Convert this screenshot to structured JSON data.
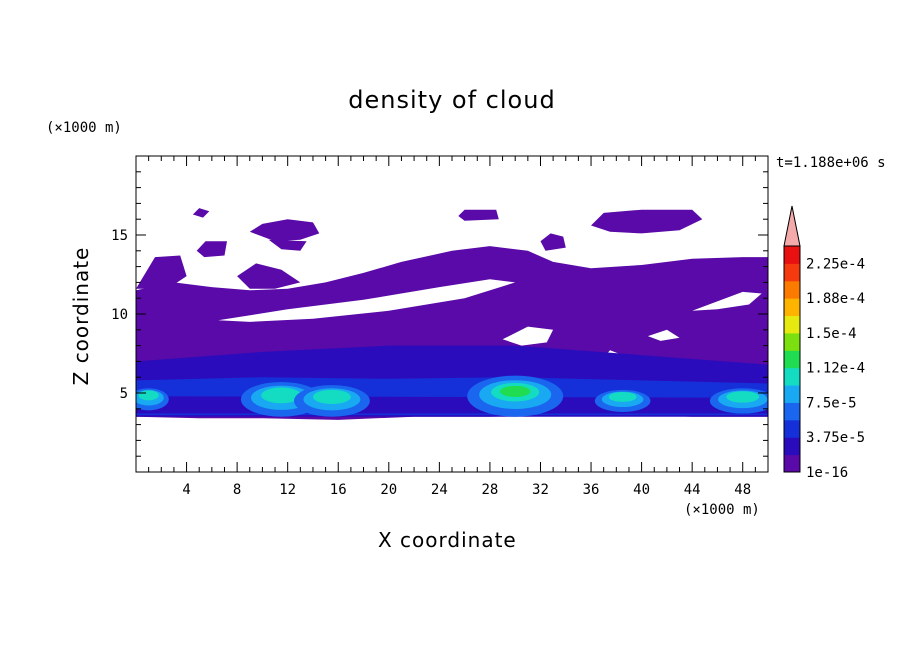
{
  "chart_data": {
    "type": "heatmap",
    "title": "density of cloud",
    "xlabel": "X coordinate",
    "ylabel": "Z coordinate",
    "x_unit": "(×1000 m)",
    "z_unit": "(×1000 m)",
    "time_label": "t=1.188e+06 s",
    "xlim": [
      0,
      50
    ],
    "ylim": [
      0,
      20
    ],
    "x_ticks": [
      4,
      8,
      12,
      16,
      20,
      24,
      28,
      32,
      36,
      40,
      44,
      48
    ],
    "y_ticks": [
      5,
      10,
      15
    ],
    "colorbar": {
      "labels": [
        "1e-16",
        "3.75e-5",
        "7.5e-5",
        "1.12e-4",
        "1.5e-4",
        "1.88e-4",
        "2.25e-4"
      ],
      "colors": [
        "#5a0aa8",
        "#2b0cbc",
        "#1530d8",
        "#1a66ef",
        "#19a8f2",
        "#14dcc2",
        "#20dc50",
        "#7ce010",
        "#e6ea10",
        "#fdb400",
        "#fb7a00",
        "#f53a10",
        "#e81010"
      ],
      "extend_color": "#f4aaaa"
    },
    "features": {
      "main_layer": {
        "x_range": [
          0,
          50
        ],
        "z_range": [
          3.5,
          11.5
        ]
      },
      "upper_patches": "scattered cloud at z ≈ 11–17 with clear gaps",
      "dense_cores": [
        {
          "x": 1,
          "z": 4.8
        },
        {
          "x": 11.5,
          "z": 5.0
        },
        {
          "x": 15.5,
          "z": 4.8
        },
        {
          "x": 30,
          "z": 5.2
        },
        {
          "x": 38.5,
          "z": 4.6
        },
        {
          "x": 48,
          "z": 4.6
        }
      ]
    }
  }
}
